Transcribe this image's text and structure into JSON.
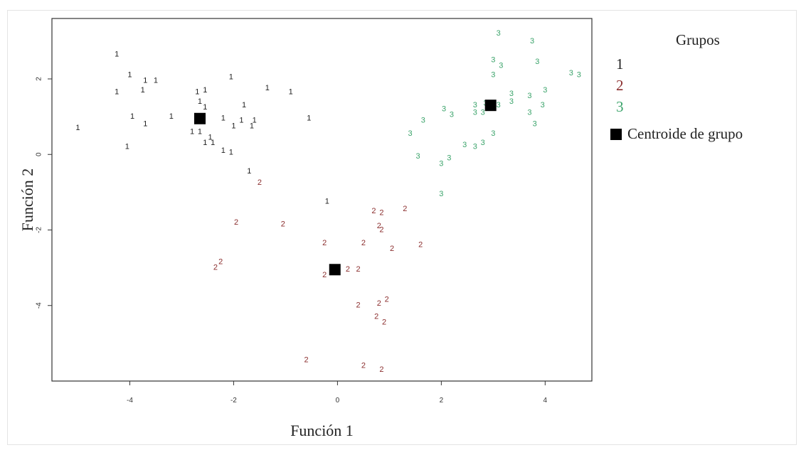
{
  "chart_data": {
    "type": "scatter",
    "title": "",
    "xlabel": "Función 1",
    "ylabel": "Función 2",
    "xlim": [
      -5.5,
      4.9
    ],
    "ylim": [
      -6,
      3.6
    ],
    "xticks": [
      -4,
      -2,
      0,
      2,
      4
    ],
    "yticks": [
      -4,
      -2,
      0,
      2
    ],
    "xtick_labels": [
      "-4",
      "-2",
      "0",
      "2",
      "4"
    ],
    "ytick_labels": [
      "-4",
      "-2",
      "0",
      "2"
    ],
    "grid": false,
    "legend": {
      "title": "Grupos",
      "position": "right",
      "entries": [
        "1",
        "2",
        "3"
      ],
      "centroid_label": "Centroide de grupo"
    },
    "series": [
      {
        "name": "1",
        "marker": "1",
        "color": "#222222",
        "points": [
          {
            "x": -5.0,
            "y": 0.7
          },
          {
            "x": -4.25,
            "y": 2.65
          },
          {
            "x": -4.0,
            "y": 2.1
          },
          {
            "x": -4.25,
            "y": 1.65
          },
          {
            "x": -3.7,
            "y": 1.95
          },
          {
            "x": -3.5,
            "y": 1.95
          },
          {
            "x": -3.75,
            "y": 1.7
          },
          {
            "x": -3.95,
            "y": 1.0
          },
          {
            "x": -3.7,
            "y": 0.8
          },
          {
            "x": -4.05,
            "y": 0.2
          },
          {
            "x": -3.2,
            "y": 1.0
          },
          {
            "x": -2.7,
            "y": 1.65
          },
          {
            "x": -2.55,
            "y": 1.7
          },
          {
            "x": -2.65,
            "y": 1.4
          },
          {
            "x": -2.55,
            "y": 1.25
          },
          {
            "x": -2.8,
            "y": 0.6
          },
          {
            "x": -2.65,
            "y": 0.6
          },
          {
            "x": -2.45,
            "y": 0.45
          },
          {
            "x": -2.55,
            "y": 0.3
          },
          {
            "x": -2.4,
            "y": 0.3
          },
          {
            "x": -2.2,
            "y": 0.95
          },
          {
            "x": -2.0,
            "y": 0.75
          },
          {
            "x": -1.85,
            "y": 0.9
          },
          {
            "x": -1.65,
            "y": 0.75
          },
          {
            "x": -1.6,
            "y": 0.9
          },
          {
            "x": -2.05,
            "y": 2.05
          },
          {
            "x": -1.8,
            "y": 1.3
          },
          {
            "x": -1.35,
            "y": 1.75
          },
          {
            "x": -0.9,
            "y": 1.65
          },
          {
            "x": -0.55,
            "y": 0.95
          },
          {
            "x": -2.2,
            "y": 0.1
          },
          {
            "x": -2.05,
            "y": 0.05
          },
          {
            "x": -1.7,
            "y": -0.45
          },
          {
            "x": -0.2,
            "y": -1.25
          }
        ]
      },
      {
        "name": "2",
        "marker": "2",
        "color": "#8b2e2e",
        "points": [
          {
            "x": -1.5,
            "y": -0.75
          },
          {
            "x": -1.95,
            "y": -1.8
          },
          {
            "x": -1.05,
            "y": -1.85
          },
          {
            "x": -2.35,
            "y": -3.0
          },
          {
            "x": -2.25,
            "y": -2.85
          },
          {
            "x": -0.25,
            "y": -2.35
          },
          {
            "x": -0.25,
            "y": -3.2
          },
          {
            "x": 0.2,
            "y": -3.05
          },
          {
            "x": 0.4,
            "y": -3.05
          },
          {
            "x": 0.5,
            "y": -2.35
          },
          {
            "x": 0.7,
            "y": -1.5
          },
          {
            "x": 0.85,
            "y": -1.55
          },
          {
            "x": 0.8,
            "y": -1.9
          },
          {
            "x": 0.85,
            "y": -2.0
          },
          {
            "x": 1.05,
            "y": -2.5
          },
          {
            "x": 1.3,
            "y": -1.45
          },
          {
            "x": 1.6,
            "y": -2.4
          },
          {
            "x": 0.4,
            "y": -4.0
          },
          {
            "x": 0.8,
            "y": -3.95
          },
          {
            "x": 0.95,
            "y": -3.85
          },
          {
            "x": 0.75,
            "y": -4.3
          },
          {
            "x": 0.9,
            "y": -4.45
          },
          {
            "x": -0.6,
            "y": -5.45
          },
          {
            "x": 0.5,
            "y": -5.6
          },
          {
            "x": 0.85,
            "y": -5.7
          }
        ]
      },
      {
        "name": "3",
        "marker": "3",
        "color": "#3aa36a",
        "points": [
          {
            "x": 3.1,
            "y": 3.2
          },
          {
            "x": 3.75,
            "y": 3.0
          },
          {
            "x": 3.85,
            "y": 2.45
          },
          {
            "x": 3.0,
            "y": 2.5
          },
          {
            "x": 3.15,
            "y": 2.35
          },
          {
            "x": 3.0,
            "y": 2.1
          },
          {
            "x": 4.5,
            "y": 2.15
          },
          {
            "x": 4.65,
            "y": 2.1
          },
          {
            "x": 3.35,
            "y": 1.6
          },
          {
            "x": 3.7,
            "y": 1.55
          },
          {
            "x": 4.0,
            "y": 1.7
          },
          {
            "x": 2.65,
            "y": 1.3
          },
          {
            "x": 2.85,
            "y": 1.35
          },
          {
            "x": 2.65,
            "y": 1.1
          },
          {
            "x": 2.05,
            "y": 1.2
          },
          {
            "x": 2.2,
            "y": 1.05
          },
          {
            "x": 3.1,
            "y": 1.3
          },
          {
            "x": 3.35,
            "y": 1.4
          },
          {
            "x": 3.7,
            "y": 1.1
          },
          {
            "x": 3.95,
            "y": 1.3
          },
          {
            "x": 3.8,
            "y": 0.8
          },
          {
            "x": 1.65,
            "y": 0.9
          },
          {
            "x": 1.4,
            "y": 0.55
          },
          {
            "x": 1.55,
            "y": -0.05
          },
          {
            "x": 2.0,
            "y": -0.25
          },
          {
            "x": 2.15,
            "y": -0.1
          },
          {
            "x": 2.45,
            "y": 0.25
          },
          {
            "x": 2.65,
            "y": 0.2
          },
          {
            "x": 2.8,
            "y": 0.3
          },
          {
            "x": 3.0,
            "y": 0.55
          },
          {
            "x": 2.0,
            "y": -1.05
          },
          {
            "x": 2.8,
            "y": 1.1
          }
        ]
      }
    ],
    "centroids": [
      {
        "group": "1",
        "x": -2.65,
        "y": 0.95
      },
      {
        "group": "2",
        "x": -0.05,
        "y": -3.05
      },
      {
        "group": "3",
        "x": 2.95,
        "y": 1.3
      }
    ]
  }
}
